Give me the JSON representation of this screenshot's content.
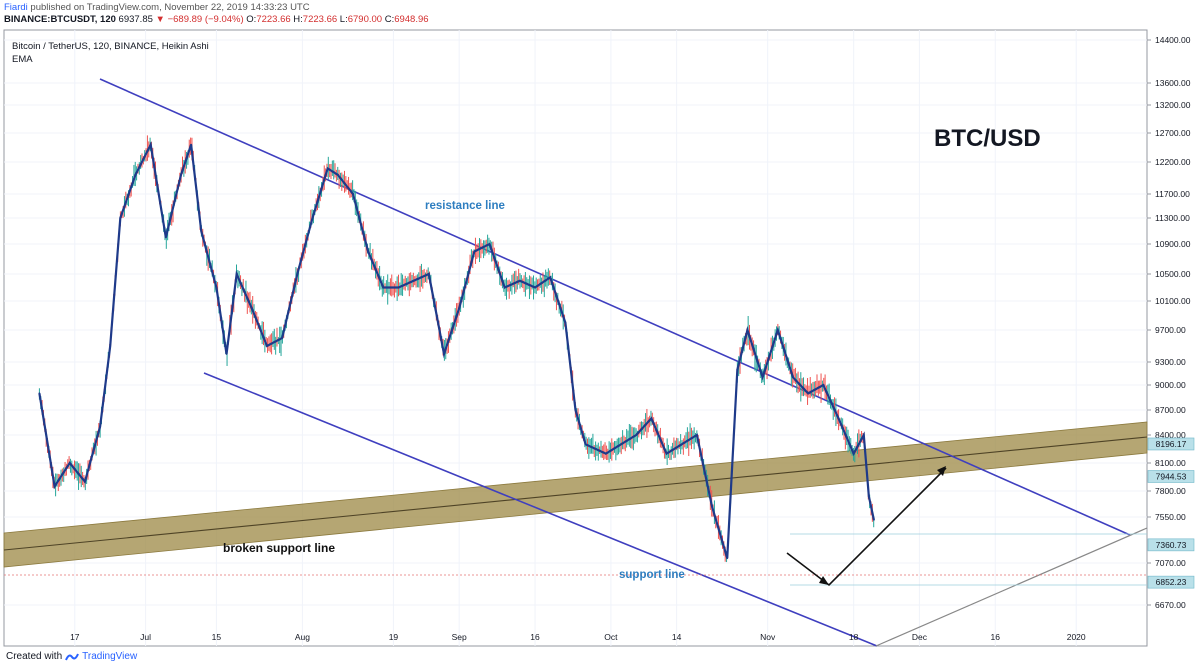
{
  "header": {
    "author": "Fiardi",
    "published_text": "published on TradingView.com, November 22, 2019 14:33:23 UTC",
    "symbol": "BINANCE:BTCUSDT, 120",
    "last": "6937.85",
    "change": "−689.89 (−9.04%)",
    "open_label": "O:",
    "open": "7223.66",
    "high_label": "H:",
    "high": "7223.66",
    "low_label": "L:",
    "low": "6790.00",
    "close_label": "C:",
    "close": "6948.96"
  },
  "legend": {
    "title": "Bitcoin / TetherUS, 120, BINANCE, Heikin Ashi",
    "indicator": "EMA"
  },
  "footer": {
    "created_with": "Created with",
    "brand": "TradingView"
  },
  "chart_data": {
    "type": "line",
    "title": "BTC/USD",
    "interval": "120",
    "style": "Heikin Ashi candles with EMA overlay",
    "ylim": [
      6500,
      14400
    ],
    "y_ticks": [
      14400,
      13600,
      13200,
      12700,
      12200,
      11700,
      11300,
      10900,
      10500,
      10100,
      9700,
      9300,
      9000,
      8700,
      8400,
      8100,
      7800,
      7550,
      7070,
      6670
    ],
    "y_tick_labels": [
      "14400.00",
      "13600.00",
      "13200.00",
      "12700.00",
      "12200.00",
      "11700.00",
      "11300.00",
      "10900.00",
      "10500.00",
      "10100.00",
      "9700.00",
      "9300.00",
      "9000.00",
      "8700.00",
      "8400.00",
      "8100.00",
      "7800.00",
      "7550.00",
      "7070.00",
      "6670.00"
    ],
    "x_tick_labels": [
      "17",
      "Jul",
      "15",
      "Aug",
      "19",
      "Sep",
      "16",
      "Oct",
      "14",
      "Nov",
      "18",
      "Dec",
      "16",
      "2020"
    ],
    "price_labels": [
      {
        "value": 8196.17,
        "label": "8196.17"
      },
      {
        "value": 7944.53,
        "label": "7944.53"
      },
      {
        "value": 7360.73,
        "label": "7360.73"
      },
      {
        "value": 6852.23,
        "label": "6852.23"
      }
    ],
    "series": [
      {
        "name": "EMA",
        "x": [
          "2019-06-10",
          "2019-06-13",
          "2019-06-16",
          "2019-06-19",
          "2019-06-22",
          "2019-06-24",
          "2019-06-26",
          "2019-06-29",
          "2019-07-02",
          "2019-07-05",
          "2019-07-08",
          "2019-07-10",
          "2019-07-12",
          "2019-07-15",
          "2019-07-17",
          "2019-07-19",
          "2019-07-22",
          "2019-07-25",
          "2019-07-28",
          "2019-07-31",
          "2019-08-03",
          "2019-08-06",
          "2019-08-08",
          "2019-08-11",
          "2019-08-14",
          "2019-08-17",
          "2019-08-20",
          "2019-08-23",
          "2019-08-26",
          "2019-08-29",
          "2019-09-01",
          "2019-09-04",
          "2019-09-07",
          "2019-09-10",
          "2019-09-13",
          "2019-09-16",
          "2019-09-19",
          "2019-09-22",
          "2019-09-24",
          "2019-09-26",
          "2019-09-30",
          "2019-10-03",
          "2019-10-06",
          "2019-10-09",
          "2019-10-12",
          "2019-10-15",
          "2019-10-18",
          "2019-10-21",
          "2019-10-24",
          "2019-10-26",
          "2019-10-28",
          "2019-10-31",
          "2019-11-03",
          "2019-11-06",
          "2019-11-09",
          "2019-11-12",
          "2019-11-15",
          "2019-11-18",
          "2019-11-20",
          "2019-11-21",
          "2019-11-22"
        ],
        "y": [
          8800,
          8050,
          7800,
          8000,
          8600,
          9500,
          10900,
          11900,
          12400,
          11200,
          11900,
          12400,
          11100,
          10300,
          9600,
          10100,
          9800,
          9500,
          9400,
          10100,
          10900,
          11800,
          11900,
          11300,
          10600,
          10300,
          10300,
          10200,
          10100,
          9600,
          9800,
          10600,
          10500,
          10300,
          10200,
          10300,
          10150,
          10000,
          8400,
          8200,
          8300,
          8200,
          8100,
          8500,
          8300,
          8200,
          8100,
          7700,
          7500,
          9100,
          9300,
          9200,
          9300,
          9200,
          8800,
          8700,
          8500,
          8300,
          8100,
          7600,
          7100
        ]
      }
    ],
    "annotations": [
      {
        "text": "resistance line"
      },
      {
        "text": "support line"
      },
      {
        "text": "broken support line"
      }
    ]
  }
}
